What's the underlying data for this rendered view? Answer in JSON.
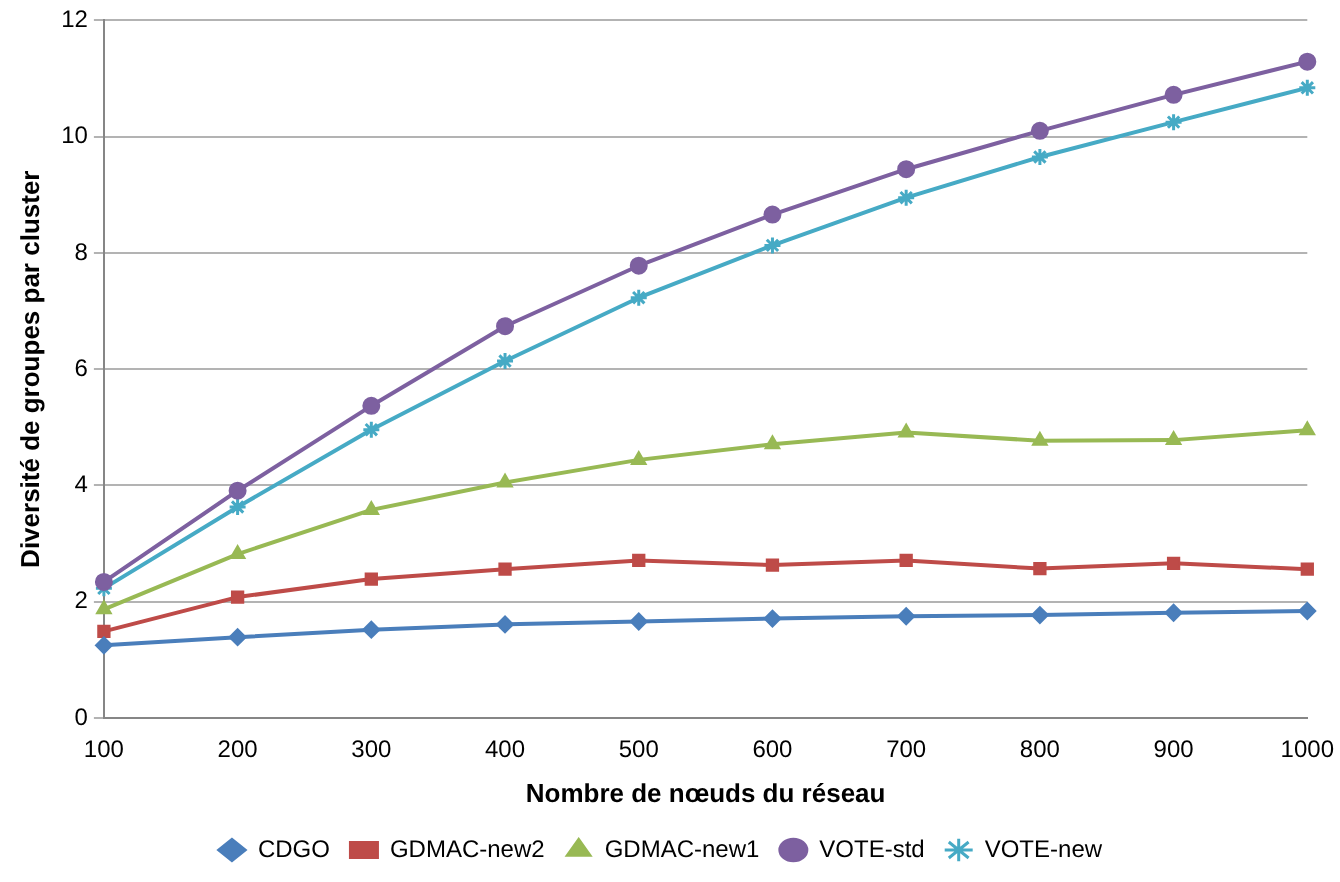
{
  "chart_data": {
    "type": "line",
    "xlabel": "Nombre de nœuds du réseau",
    "ylabel": "Diversité de groupes par cluster",
    "categories": [
      "100",
      "200",
      "300",
      "400",
      "500",
      "600",
      "700",
      "800",
      "900",
      "1000"
    ],
    "series": [
      {
        "name": "CDGO",
        "color": "#4a7ebb",
        "marker": "diamond",
        "values": [
          1.25,
          1.39,
          1.52,
          1.61,
          1.66,
          1.71,
          1.75,
          1.77,
          1.81,
          1.84
        ]
      },
      {
        "name": "GDMAC-new2",
        "color": "#be4b48",
        "marker": "square",
        "values": [
          1.49,
          2.08,
          2.39,
          2.56,
          2.71,
          2.63,
          2.71,
          2.57,
          2.66,
          2.56
        ]
      },
      {
        "name": "GDMAC-new1",
        "color": "#98b954",
        "marker": "triangle",
        "values": [
          1.87,
          2.82,
          3.58,
          4.05,
          4.44,
          4.71,
          4.91,
          4.77,
          4.78,
          4.95
        ]
      },
      {
        "name": "VOTE-std",
        "color": "#7d60a0",
        "marker": "circle",
        "values": [
          2.34,
          3.91,
          5.37,
          6.74,
          7.78,
          8.66,
          9.44,
          10.1,
          10.72,
          11.29
        ]
      },
      {
        "name": "VOTE-new",
        "color": "#46aac5",
        "marker": "cross",
        "values": [
          2.23,
          3.63,
          4.96,
          6.14,
          7.23,
          8.13,
          8.95,
          9.65,
          10.25,
          10.84
        ]
      }
    ],
    "ylim": [
      0,
      12
    ],
    "yticks": [
      0,
      2,
      4,
      6,
      8,
      10,
      12
    ],
    "grid": "y",
    "legend": "bottom",
    "line_style": "solid"
  }
}
